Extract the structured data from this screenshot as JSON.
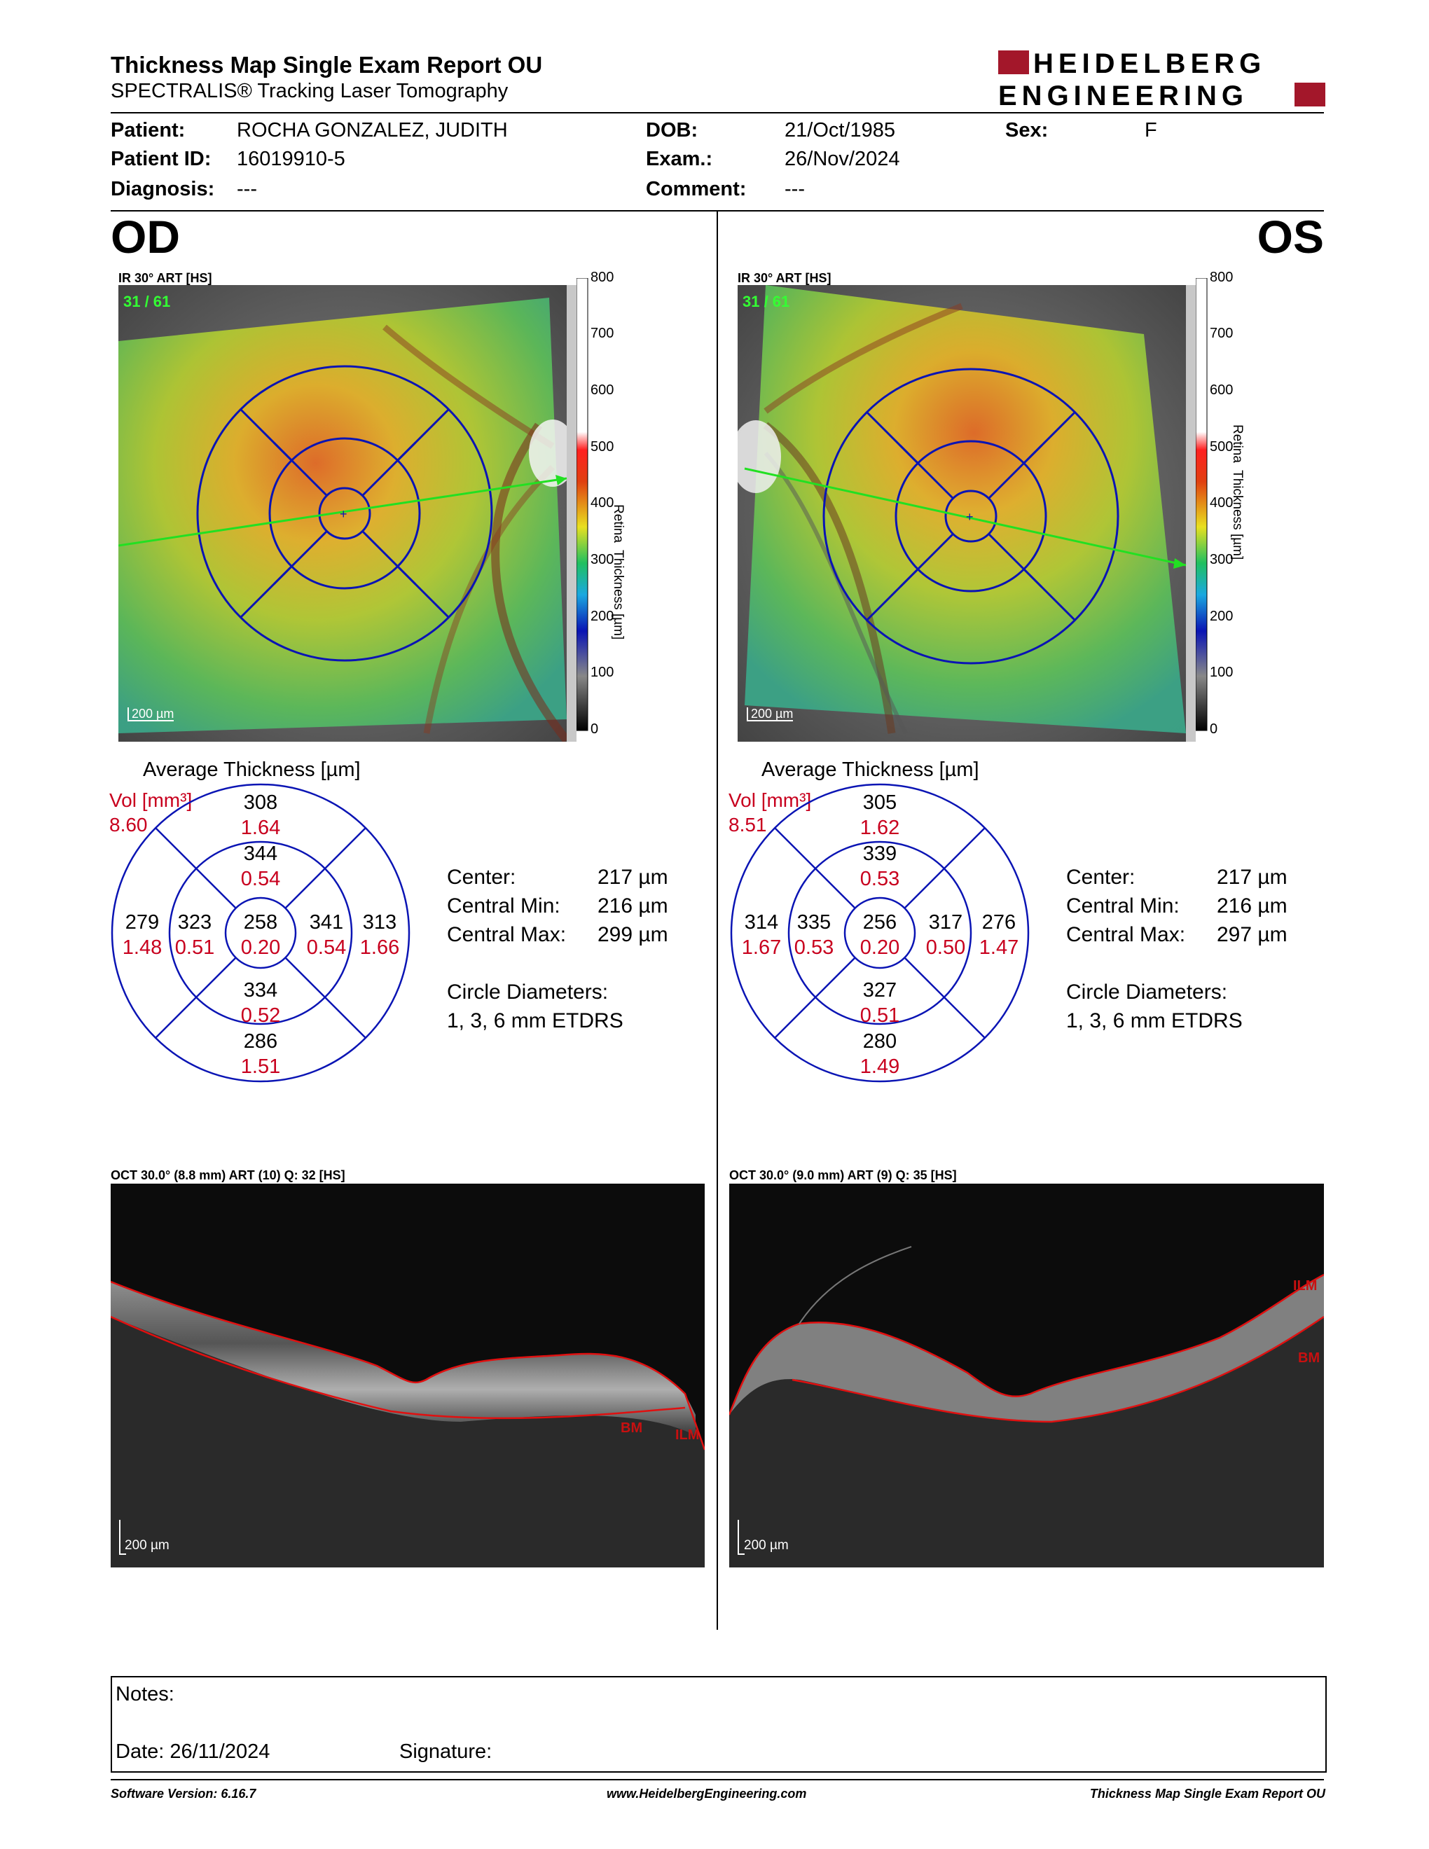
{
  "header": {
    "title": "Thickness Map Single Exam Report OU",
    "subtitle": "SPECTRALIS® Tracking Laser Tomography",
    "logo_line1": "HEIDELBERG",
    "logo_line2": "ENGINEERING"
  },
  "patient": {
    "patient_label": "Patient:",
    "patient_value": "ROCHA GONZALEZ, JUDITH",
    "id_label": "Patient ID:",
    "id_value": "16019910-5",
    "diagnosis_label": "Diagnosis:",
    "diagnosis_value": "---",
    "dob_label": "DOB:",
    "dob_value": "21/Oct/1985",
    "exam_label": "Exam.:",
    "exam_value": "26/Nov/2024",
    "comment_label": "Comment:",
    "comment_value": "---",
    "sex_label": "Sex:",
    "sex_value": "F"
  },
  "colorbar": {
    "ticks": [
      "800",
      "700",
      "600",
      "500",
      "400",
      "300",
      "200",
      "100",
      "0"
    ],
    "axis_label": "Retina  Thickness [µm]"
  },
  "od": {
    "eye": "OD",
    "ir_label": "IR 30° ART [HS]",
    "frame_count": "31 / 61",
    "scale": "200 µm",
    "avg_title": "Average Thickness [µm]",
    "vol_label": "Vol [mm³]",
    "vol_value": "8.60",
    "grid": {
      "outer_top": "308",
      "outer_top_vol": "1.64",
      "inner_top": "344",
      "inner_top_vol": "0.54",
      "outer_left": "279",
      "outer_left_vol": "1.48",
      "inner_left": "323",
      "inner_left_vol": "0.51",
      "center": "258",
      "center_vol": "0.20",
      "inner_right": "341",
      "inner_right_vol": "0.54",
      "outer_right": "313",
      "outer_right_vol": "1.66",
      "inner_bottom": "334",
      "inner_bottom_vol": "0.52",
      "outer_bottom": "286",
      "outer_bottom_vol": "1.51"
    },
    "stats": {
      "center_label": "Center:",
      "center_value": "217 µm",
      "min_label": "Central Min:",
      "min_value": "216 µm",
      "max_label": "Central Max:",
      "max_value": "299 µm",
      "circle_label": "Circle Diameters:",
      "circle_value": "1, 3, 6 mm ETDRS"
    },
    "oct_label": "OCT 30.0° (8.8 mm) ART (10) Q: 32 [HS]",
    "oct_scale": "200 µm",
    "ilm": "ILM",
    "bm": "BM"
  },
  "os": {
    "eye": "OS",
    "ir_label": "IR 30° ART [HS]",
    "frame_count": "31 / 61",
    "scale": "200 µm",
    "avg_title": "Average Thickness [µm]",
    "vol_label": "Vol [mm³]",
    "vol_value": "8.51",
    "grid": {
      "outer_top": "305",
      "outer_top_vol": "1.62",
      "inner_top": "339",
      "inner_top_vol": "0.53",
      "outer_left": "314",
      "outer_left_vol": "1.67",
      "inner_left": "335",
      "inner_left_vol": "0.53",
      "center": "256",
      "center_vol": "0.20",
      "inner_right": "317",
      "inner_right_vol": "0.50",
      "outer_right": "276",
      "outer_right_vol": "1.47",
      "inner_bottom": "327",
      "inner_bottom_vol": "0.51",
      "outer_bottom": "280",
      "outer_bottom_vol": "1.49"
    },
    "stats": {
      "center_label": "Center:",
      "center_value": "217 µm",
      "min_label": "Central Min:",
      "min_value": "216 µm",
      "max_label": "Central Max:",
      "max_value": "297 µm",
      "circle_label": "Circle Diameters:",
      "circle_value": "1, 3, 6 mm ETDRS"
    },
    "oct_label": "OCT 30.0° (9.0 mm) ART (9) Q: 35 [HS]",
    "oct_scale": "200 µm",
    "ilm": "ILM",
    "bm": "BM"
  },
  "notes": {
    "notes_label": "Notes:",
    "date_label": "Date: 26/11/2024",
    "signature_label": "Signature:"
  },
  "footer": {
    "version": "Software Version: 6.16.7",
    "website": "www.HeidelbergEngineering.com",
    "report": "Thickness Map Single Exam Report OU"
  },
  "colors": {
    "etdrs_blue": "#0a14b4",
    "volume_red": "#c8001e",
    "frame_green": "#33ff33",
    "logo_red": "#a3172a",
    "segmentation_red": "#e01010"
  }
}
